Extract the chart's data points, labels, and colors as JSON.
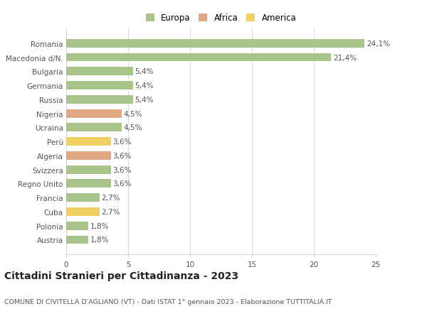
{
  "countries": [
    "Romania",
    "Macedonia d/N.",
    "Bulgaria",
    "Germania",
    "Russia",
    "Nigeria",
    "Ucraina",
    "Perù",
    "Algeria",
    "Svizzera",
    "Regno Unito",
    "Francia",
    "Cuba",
    "Polonia",
    "Austria"
  ],
  "values": [
    24.1,
    21.4,
    5.4,
    5.4,
    5.4,
    4.5,
    4.5,
    3.6,
    3.6,
    3.6,
    3.6,
    2.7,
    2.7,
    1.8,
    1.8
  ],
  "labels": [
    "24,1%",
    "21,4%",
    "5,4%",
    "5,4%",
    "5,4%",
    "4,5%",
    "4,5%",
    "3,6%",
    "3,6%",
    "3,6%",
    "3,6%",
    "2,7%",
    "2,7%",
    "1,8%",
    "1,8%"
  ],
  "continents": [
    "Europa",
    "Europa",
    "Europa",
    "Europa",
    "Europa",
    "Africa",
    "Europa",
    "America",
    "Africa",
    "Europa",
    "Europa",
    "Europa",
    "America",
    "Europa",
    "Europa"
  ],
  "colors": {
    "Europa": "#a8c48a",
    "Africa": "#e0a882",
    "America": "#f0d060"
  },
  "legend_order": [
    "Europa",
    "Africa",
    "America"
  ],
  "xlim": [
    0,
    25
  ],
  "xticks": [
    0,
    5,
    10,
    15,
    20,
    25
  ],
  "title": "Cittadini Stranieri per Cittadinanza - 2023",
  "subtitle": "COMUNE DI CIVITELLA D'AGLIANO (VT) - Dati ISTAT 1° gennaio 2023 - Elaborazione TUTTITALIA.IT",
  "bg_color": "#ffffff",
  "grid_color": "#d8d8d8",
  "bar_height": 0.6,
  "label_fontsize": 7.5,
  "ytick_fontsize": 7.5,
  "xtick_fontsize": 7.5,
  "title_fontsize": 10,
  "subtitle_fontsize": 6.8,
  "legend_fontsize": 8.5
}
